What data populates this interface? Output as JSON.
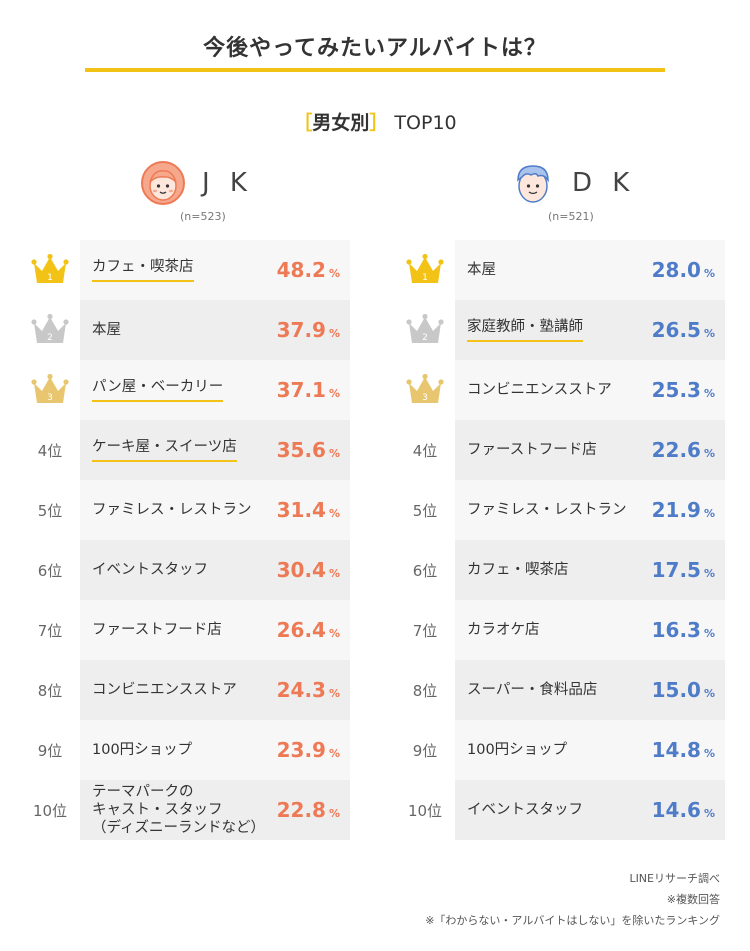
{
  "title": "今後やってみたいアルバイトは？",
  "subtitle": {
    "open": "［",
    "word": "男女別",
    "close": "］",
    "rest": " TOP10"
  },
  "colors": {
    "accent": "#f2c316",
    "jk": "#ee7a55",
    "dk": "#4f7cc9",
    "gold": "#f2c316",
    "silver": "#c8c8c8",
    "bronze": "#e8c670"
  },
  "chart_data": [
    {
      "type": "table",
      "name": "J K",
      "n": "(n=523)",
      "unit": "%",
      "rows": [
        {
          "rank": "1",
          "label": "カフェ・喫茶店",
          "value": 48.2,
          "display": "48.2",
          "crown": "gold",
          "underline": true
        },
        {
          "rank": "2",
          "label": "本屋",
          "value": 37.9,
          "display": "37.9",
          "crown": "silver",
          "underline": false
        },
        {
          "rank": "3",
          "label": "パン屋・ベーカリー",
          "value": 37.1,
          "display": "37.1",
          "crown": "bronze",
          "underline": true
        },
        {
          "rank": "4位",
          "label": "ケーキ屋・スイーツ店",
          "value": 35.6,
          "display": "35.6",
          "crown": "",
          "underline": true
        },
        {
          "rank": "5位",
          "label": "ファミレス・レストラン",
          "value": 31.4,
          "display": "31.4",
          "crown": "",
          "underline": false
        },
        {
          "rank": "6位",
          "label": "イベントスタッフ",
          "value": 30.4,
          "display": "30.4",
          "crown": "",
          "underline": false
        },
        {
          "rank": "7位",
          "label": "ファーストフード店",
          "value": 26.4,
          "display": "26.4",
          "crown": "",
          "underline": false
        },
        {
          "rank": "8位",
          "label": "コンビニエンスストア",
          "value": 24.3,
          "display": "24.3",
          "crown": "",
          "underline": false
        },
        {
          "rank": "9位",
          "label": "100円ショップ",
          "value": 23.9,
          "display": "23.9",
          "crown": "",
          "underline": false
        },
        {
          "rank": "10位",
          "label": "テーマパークの\nキャスト・スタッフ\n（ディズニーランドなど）",
          "value": 22.8,
          "display": "22.8",
          "crown": "",
          "underline": false
        }
      ]
    },
    {
      "type": "table",
      "name": "D K",
      "n": "(n=521)",
      "unit": "%",
      "rows": [
        {
          "rank": "1",
          "label": "本屋",
          "value": 28.0,
          "display": "28.0",
          "crown": "gold",
          "underline": false
        },
        {
          "rank": "2",
          "label": "家庭教師・塾講師",
          "value": 26.5,
          "display": "26.5",
          "crown": "silver",
          "underline": true
        },
        {
          "rank": "3",
          "label": "コンビニエンスストア",
          "value": 25.3,
          "display": "25.3",
          "crown": "bronze",
          "underline": false
        },
        {
          "rank": "4位",
          "label": "ファーストフード店",
          "value": 22.6,
          "display": "22.6",
          "crown": "",
          "underline": false
        },
        {
          "rank": "5位",
          "label": "ファミレス・レストラン",
          "value": 21.9,
          "display": "21.9",
          "crown": "",
          "underline": false
        },
        {
          "rank": "6位",
          "label": "カフェ・喫茶店",
          "value": 17.5,
          "display": "17.5",
          "crown": "",
          "underline": false
        },
        {
          "rank": "7位",
          "label": "カラオケ店",
          "value": 16.3,
          "display": "16.3",
          "crown": "",
          "underline": false
        },
        {
          "rank": "8位",
          "label": "スーパー・食料品店",
          "value": 15.0,
          "display": "15.0",
          "crown": "",
          "underline": false
        },
        {
          "rank": "9位",
          "label": "100円ショップ",
          "value": 14.8,
          "display": "14.8",
          "crown": "",
          "underline": false
        },
        {
          "rank": "10位",
          "label": "イベントスタッフ",
          "value": 14.6,
          "display": "14.6",
          "crown": "",
          "underline": false
        }
      ]
    }
  ],
  "notes": [
    "LINEリサーチ調べ",
    "※複数回答",
    "※「わからない・アルバイトはしない」を除いたランキング"
  ]
}
